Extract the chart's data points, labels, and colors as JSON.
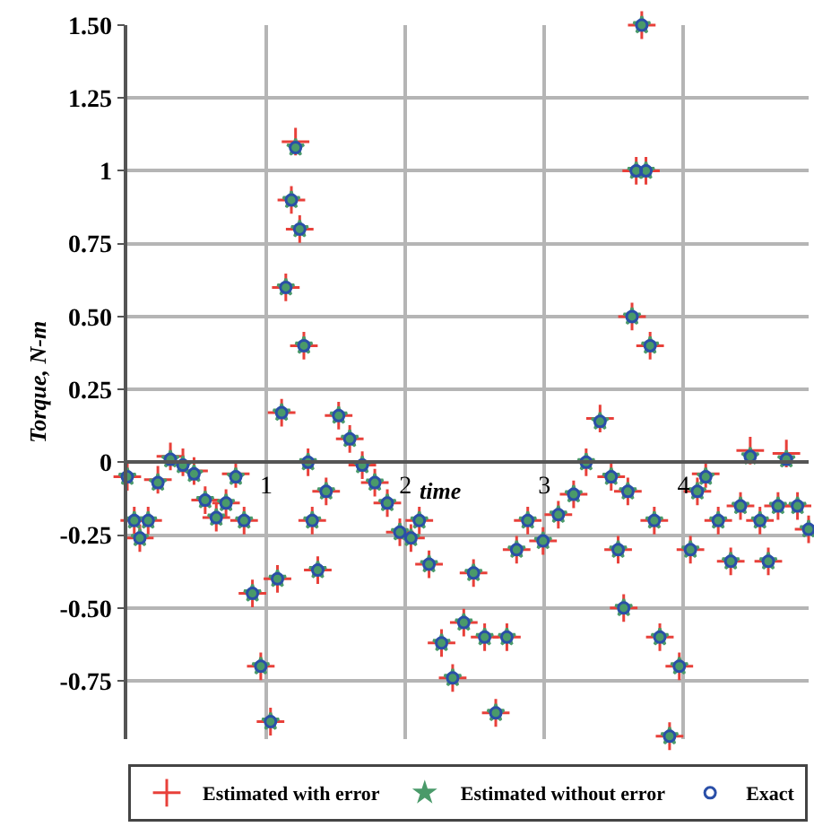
{
  "chart_data": {
    "type": "scatter",
    "xlabel": "time",
    "ylabel": "Torque, N-m",
    "x": [
      0,
      0.05,
      0.09,
      0.15,
      0.22,
      0.31,
      0.4,
      0.48,
      0.56,
      0.64,
      0.71,
      0.78,
      0.84,
      0.9,
      0.96,
      1.03,
      1.08,
      1.11,
      1.14,
      1.18,
      1.21,
      1.24,
      1.27,
      1.3,
      1.33,
      1.37,
      1.43,
      1.52,
      1.6,
      1.69,
      1.78,
      1.87,
      1.96,
      2.04,
      2.1,
      2.17,
      2.26,
      2.34,
      2.42,
      2.49,
      2.57,
      2.65,
      2.73,
      2.8,
      2.88,
      2.99,
      3.1,
      3.21,
      3.3,
      3.4,
      3.48,
      3.53,
      3.57,
      3.6,
      3.63,
      3.66,
      3.7,
      3.73,
      3.76,
      3.79,
      3.83,
      3.9,
      3.97,
      4.05,
      4.1,
      4.16,
      4.25,
      4.34,
      4.41,
      4.48,
      4.55,
      4.61,
      4.68,
      4.74,
      4.82,
      4.9
    ],
    "series": [
      {
        "name": "Estimated with error",
        "color": "#e8403a",
        "marker": "cross",
        "values": [
          -0.05,
          -0.2,
          -0.26,
          -0.2,
          -0.06,
          0.02,
          0.0,
          -0.03,
          -0.13,
          -0.19,
          -0.14,
          -0.04,
          -0.2,
          -0.45,
          -0.7,
          -0.89,
          -0.4,
          0.17,
          0.6,
          0.9,
          1.1,
          0.8,
          0.4,
          0.0,
          -0.2,
          -0.37,
          -0.1,
          0.16,
          0.08,
          -0.01,
          -0.07,
          -0.14,
          -0.24,
          -0.26,
          -0.2,
          -0.35,
          -0.62,
          -0.74,
          -0.55,
          -0.38,
          -0.6,
          -0.86,
          -0.6,
          -0.3,
          -0.2,
          -0.27,
          -0.18,
          -0.11,
          0.0,
          0.15,
          -0.05,
          -0.3,
          -0.5,
          -0.1,
          0.5,
          1.0,
          1.5,
          1.0,
          0.4,
          -0.2,
          -0.6,
          -0.94,
          -0.7,
          -0.3,
          -0.1,
          -0.04,
          -0.2,
          -0.34,
          -0.15,
          0.04,
          -0.2,
          -0.34,
          -0.15,
          0.03,
          -0.15,
          -0.23
        ]
      },
      {
        "name": "Estimated without error",
        "color": "#4a9a6a",
        "marker": "star",
        "values": [
          -0.05,
          -0.2,
          -0.26,
          -0.2,
          -0.07,
          0.01,
          -0.01,
          -0.04,
          -0.13,
          -0.19,
          -0.14,
          -0.05,
          -0.2,
          -0.45,
          -0.7,
          -0.89,
          -0.4,
          0.17,
          0.6,
          0.9,
          1.08,
          0.8,
          0.4,
          0.0,
          -0.2,
          -0.37,
          -0.1,
          0.16,
          0.08,
          -0.01,
          -0.07,
          -0.14,
          -0.24,
          -0.26,
          -0.2,
          -0.35,
          -0.62,
          -0.74,
          -0.55,
          -0.38,
          -0.6,
          -0.86,
          -0.6,
          -0.3,
          -0.2,
          -0.27,
          -0.18,
          -0.11,
          0.0,
          0.14,
          -0.05,
          -0.3,
          -0.5,
          -0.1,
          0.5,
          1.0,
          1.5,
          1.0,
          0.4,
          -0.2,
          -0.6,
          -0.94,
          -0.7,
          -0.3,
          -0.1,
          -0.05,
          -0.2,
          -0.34,
          -0.15,
          0.02,
          -0.2,
          -0.34,
          -0.15,
          0.01,
          -0.15,
          -0.23
        ]
      },
      {
        "name": "Exact",
        "color": "#2a4fa8",
        "marker": "circle",
        "values": [
          -0.05,
          -0.2,
          -0.26,
          -0.2,
          -0.07,
          0.01,
          -0.01,
          -0.04,
          -0.13,
          -0.19,
          -0.14,
          -0.05,
          -0.2,
          -0.45,
          -0.7,
          -0.89,
          -0.4,
          0.17,
          0.6,
          0.9,
          1.08,
          0.8,
          0.4,
          0.0,
          -0.2,
          -0.37,
          -0.1,
          0.16,
          0.08,
          -0.01,
          -0.07,
          -0.14,
          -0.24,
          -0.26,
          -0.2,
          -0.35,
          -0.62,
          -0.74,
          -0.55,
          -0.38,
          -0.6,
          -0.86,
          -0.6,
          -0.3,
          -0.2,
          -0.27,
          -0.18,
          -0.11,
          0.0,
          0.14,
          -0.05,
          -0.3,
          -0.5,
          -0.1,
          0.5,
          1.0,
          1.5,
          1.0,
          0.4,
          -0.2,
          -0.6,
          -0.94,
          -0.7,
          -0.3,
          -0.1,
          -0.05,
          -0.2,
          -0.34,
          -0.15,
          0.02,
          -0.2,
          -0.34,
          -0.15,
          0.01,
          -0.15,
          -0.23
        ]
      }
    ],
    "xlim": [
      0,
      4.9
    ],
    "xticks": [
      1,
      2,
      3,
      4
    ],
    "ylim": [
      -0.95,
      1.5
    ],
    "yticks": [
      {
        "value": 1.5,
        "label": "1.50"
      },
      1.25,
      1,
      0.75,
      {
        "value": 0.5,
        "label": "0.50"
      },
      0.25,
      0,
      -0.25,
      {
        "value": -0.5,
        "label": "-0.50"
      },
      -0.75
    ],
    "grid": true,
    "legend": "bottom"
  }
}
